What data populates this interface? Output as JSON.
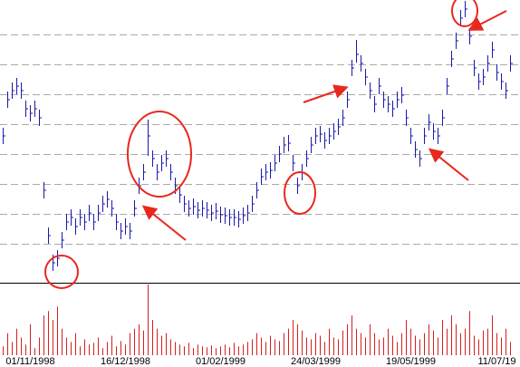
{
  "chart_data": [
    {
      "type": "hlc",
      "color": "#1a1aa8",
      "ylim": [
        0,
        312
      ],
      "yticks": [
        43,
        76,
        109,
        142,
        175,
        208,
        241,
        274
      ],
      "grid": true,
      "high": [
        171,
        211,
        221,
        226,
        221,
        201,
        196,
        201,
        191,
        111,
        61,
        31,
        36,
        56,
        76,
        81,
        71,
        81,
        76,
        86,
        76,
        86,
        96,
        101,
        91,
        76,
        66,
        71,
        66,
        91,
        116,
        131,
        180,
        146,
        131,
        141,
        146,
        131,
        116,
        106,
        96,
        91,
        93,
        89,
        91,
        89,
        86,
        88,
        84,
        83,
        81,
        81,
        79,
        83,
        86,
        96,
        111,
        126,
        131,
        133,
        141,
        151,
        161,
        163,
        141,
        116,
        131,
        146,
        161,
        171,
        173,
        166,
        171,
        176,
        181,
        191,
        211,
        246,
        268,
        251,
        236,
        221,
        206,
        226,
        211,
        206,
        201,
        211,
        216,
        191,
        171,
        156,
        146,
        171,
        186,
        176,
        171,
        191,
        226,
        256,
        276,
        301,
        311,
        281,
        246,
        231,
        236,
        251,
        266,
        241,
        231,
        221,
        251
      ],
      "low": [
        153,
        193,
        203,
        208,
        203,
        183,
        178,
        183,
        173,
        93,
        43,
        13,
        18,
        38,
        58,
        63,
        53,
        63,
        58,
        68,
        58,
        68,
        78,
        83,
        73,
        58,
        48,
        53,
        48,
        73,
        98,
        113,
        140,
        128,
        113,
        123,
        128,
        113,
        98,
        88,
        78,
        73,
        75,
        71,
        73,
        71,
        68,
        70,
        66,
        65,
        63,
        63,
        61,
        65,
        68,
        78,
        93,
        108,
        113,
        115,
        123,
        133,
        143,
        145,
        123,
        98,
        113,
        128,
        143,
        153,
        155,
        148,
        153,
        158,
        163,
        173,
        193,
        228,
        243,
        233,
        218,
        203,
        188,
        208,
        193,
        188,
        183,
        193,
        198,
        173,
        153,
        138,
        128,
        153,
        168,
        158,
        153,
        173,
        208,
        238,
        258,
        283,
        293,
        263,
        228,
        213,
        218,
        233,
        248,
        223,
        213,
        203,
        233
      ],
      "close": [
        162,
        202,
        212,
        217,
        212,
        192,
        187,
        192,
        182,
        102,
        52,
        22,
        27,
        47,
        67,
        72,
        62,
        72,
        67,
        77,
        67,
        77,
        87,
        92,
        82,
        67,
        57,
        62,
        57,
        82,
        107,
        122,
        162,
        137,
        122,
        132,
        137,
        122,
        107,
        97,
        87,
        82,
        84,
        80,
        82,
        80,
        77,
        79,
        75,
        74,
        72,
        72,
        70,
        74,
        77,
        87,
        102,
        117,
        122,
        124,
        132,
        142,
        152,
        154,
        132,
        107,
        122,
        137,
        152,
        162,
        164,
        157,
        162,
        167,
        172,
        182,
        202,
        237,
        252,
        242,
        227,
        212,
        197,
        217,
        202,
        197,
        192,
        202,
        207,
        182,
        162,
        147,
        137,
        162,
        177,
        167,
        162,
        182,
        217,
        247,
        267,
        292,
        302,
        272,
        237,
        222,
        227,
        242,
        257,
        232,
        222,
        212,
        242
      ]
    },
    {
      "type": "bar",
      "color": "#d42020",
      "ylim": [
        0,
        80
      ],
      "categories": [
        null,
        null,
        null,
        null,
        null,
        null,
        "01/11/1998",
        null,
        null,
        null,
        null,
        null,
        null,
        null,
        null,
        null,
        null,
        null,
        null,
        null,
        null,
        null,
        null,
        null,
        null,
        null,
        null,
        "16/12/1998",
        null,
        null,
        null,
        null,
        null,
        null,
        null,
        null,
        null,
        null,
        null,
        null,
        null,
        null,
        null,
        null,
        null,
        null,
        null,
        null,
        "01/02/1999",
        null,
        null,
        null,
        null,
        null,
        null,
        null,
        null,
        null,
        null,
        null,
        null,
        null,
        null,
        null,
        null,
        null,
        null,
        null,
        null,
        "24/03/1999",
        null,
        null,
        null,
        null,
        null,
        null,
        null,
        null,
        null,
        null,
        null,
        null,
        null,
        null,
        null,
        null,
        null,
        null,
        null,
        null,
        "19/05/1999",
        null,
        null,
        null,
        null,
        null,
        null,
        null,
        null,
        null,
        null,
        null,
        null,
        null,
        null,
        null,
        null,
        null,
        null,
        "11/07/19",
        null,
        null,
        null
      ],
      "values": [
        10,
        25,
        15,
        30,
        20,
        12,
        35,
        8,
        20,
        45,
        50,
        40,
        55,
        30,
        20,
        15,
        25,
        10,
        18,
        12,
        14,
        20,
        8,
        15,
        22,
        10,
        16,
        12,
        25,
        30,
        35,
        28,
        80,
        40,
        30,
        22,
        25,
        18,
        15,
        12,
        10,
        14,
        8,
        12,
        10,
        9,
        11,
        8,
        10,
        12,
        9,
        14,
        10,
        12,
        15,
        18,
        25,
        20,
        15,
        22,
        18,
        16,
        25,
        30,
        40,
        35,
        28,
        20,
        18,
        25,
        22,
        15,
        30,
        20,
        18,
        28,
        35,
        45,
        30,
        25,
        20,
        35,
        25,
        18,
        20,
        30,
        22,
        15,
        25,
        40,
        30,
        22,
        18,
        25,
        35,
        28,
        20,
        40,
        30,
        45,
        35,
        25,
        30,
        50,
        22,
        18,
        28,
        30,
        45,
        25,
        20,
        30,
        15
      ]
    }
  ]
}
